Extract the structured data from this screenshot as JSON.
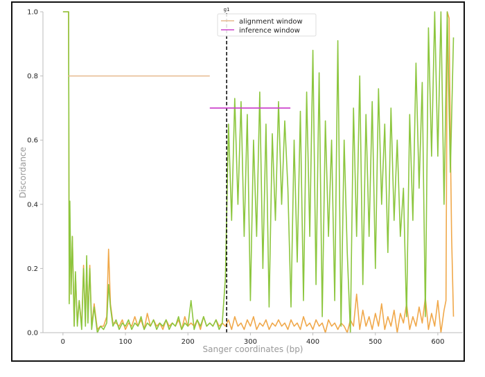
{
  "chart_data": {
    "type": "line",
    "title": "",
    "xlabel": "Sanger coordinates (bp)",
    "ylabel": "Discordance",
    "xlim": [
      -32,
      640
    ],
    "ylim": [
      0,
      1.0
    ],
    "xticks": [
      "0",
      "100",
      "200",
      "300",
      "400",
      "500",
      "600"
    ],
    "yticks": [
      "0.0",
      "0.2",
      "0.4",
      "0.6",
      "0.8",
      "1.0"
    ],
    "grid": false,
    "legend_position": "top-center",
    "legend": [
      "alignment window",
      "inference window"
    ],
    "colors": {
      "green": "#8cc63e",
      "orange": "#f0a84a",
      "alignment": "#e6b98e",
      "inference": "#cc44cc",
      "marker": "#000000"
    },
    "marker": {
      "label": "g1",
      "x": 262
    },
    "alignment_window": {
      "y": 0.8,
      "x": [
        8,
        235
      ]
    },
    "inference_window": {
      "y": 0.7,
      "x": [
        235,
        364
      ]
    },
    "series": [
      {
        "name": "green",
        "x": [
          0,
          9,
          10,
          11,
          13,
          15,
          18,
          20,
          23,
          26,
          30,
          33,
          36,
          38,
          40,
          43,
          46,
          50,
          55,
          60,
          65,
          70,
          73,
          76,
          80,
          85,
          90,
          95,
          100,
          105,
          110,
          115,
          120,
          125,
          130,
          135,
          140,
          145,
          150,
          155,
          160,
          165,
          170,
          175,
          180,
          185,
          190,
          195,
          200,
          205,
          210,
          215,
          220,
          225,
          230,
          235,
          240,
          245,
          250,
          255,
          260,
          265,
          270,
          275,
          280,
          285,
          290,
          295,
          300,
          305,
          310,
          315,
          320,
          325,
          330,
          335,
          340,
          345,
          350,
          355,
          360,
          365,
          370,
          375,
          380,
          385,
          390,
          395,
          400,
          405,
          410,
          415,
          420,
          425,
          430,
          435,
          440,
          445,
          450,
          455,
          460,
          465,
          470,
          475,
          480,
          485,
          490,
          495,
          500,
          505,
          510,
          515,
          520,
          525,
          530,
          535,
          540,
          545,
          550,
          555,
          560,
          565,
          570,
          575,
          580,
          585,
          590,
          595,
          600,
          605,
          610,
          615,
          620,
          625
        ],
        "y": [
          1.0,
          1.0,
          0.09,
          0.41,
          0.12,
          0.3,
          0.02,
          0.19,
          0.02,
          0.1,
          0.01,
          0.2,
          0.02,
          0.24,
          0.03,
          0.2,
          0.01,
          0.08,
          0.0,
          0.02,
          0.01,
          0.03,
          0.15,
          0.08,
          0.02,
          0.04,
          0.01,
          0.03,
          0.02,
          0.04,
          0.01,
          0.03,
          0.02,
          0.05,
          0.01,
          0.03,
          0.02,
          0.04,
          0.01,
          0.03,
          0.02,
          0.04,
          0.01,
          0.03,
          0.02,
          0.05,
          0.01,
          0.03,
          0.02,
          0.1,
          0.01,
          0.04,
          0.02,
          0.05,
          0.02,
          0.03,
          0.02,
          0.04,
          0.01,
          0.03,
          0.17,
          0.65,
          0.35,
          0.73,
          0.4,
          0.72,
          0.3,
          0.68,
          0.1,
          0.6,
          0.3,
          0.75,
          0.2,
          0.65,
          0.08,
          0.62,
          0.35,
          0.72,
          0.4,
          0.66,
          0.45,
          0.08,
          0.6,
          0.22,
          0.69,
          0.1,
          0.75,
          0.3,
          0.88,
          0.15,
          0.81,
          0.05,
          0.66,
          0.3,
          0.6,
          0.1,
          0.91,
          0.02,
          0.6,
          0.25,
          0.0,
          0.7,
          0.3,
          0.8,
          0.15,
          0.68,
          0.3,
          0.72,
          0.2,
          0.76,
          0.4,
          0.65,
          0.25,
          0.7,
          0.35,
          0.6,
          0.3,
          0.45,
          0.05,
          0.68,
          0.35,
          0.84,
          0.45,
          0.78,
          0.05,
          0.95,
          0.55,
          1.0,
          0.55,
          1.0,
          0.4,
          1.0,
          0.5,
          0.92
        ]
      },
      {
        "name": "orange",
        "x": [
          0,
          9,
          10,
          11,
          13,
          15,
          18,
          20,
          23,
          26,
          30,
          33,
          36,
          38,
          40,
          43,
          46,
          50,
          55,
          60,
          65,
          70,
          73,
          76,
          80,
          85,
          90,
          95,
          100,
          105,
          110,
          115,
          120,
          125,
          130,
          135,
          140,
          145,
          150,
          155,
          160,
          165,
          170,
          175,
          180,
          185,
          190,
          195,
          200,
          205,
          210,
          215,
          220,
          225,
          230,
          235,
          240,
          245,
          250,
          255,
          260,
          265,
          270,
          275,
          280,
          285,
          290,
          295,
          300,
          305,
          310,
          315,
          320,
          325,
          330,
          335,
          340,
          345,
          350,
          355,
          360,
          365,
          370,
          375,
          380,
          385,
          390,
          395,
          400,
          405,
          410,
          415,
          420,
          425,
          430,
          435,
          440,
          445,
          450,
          455,
          460,
          465,
          470,
          475,
          480,
          485,
          490,
          495,
          500,
          505,
          510,
          515,
          520,
          525,
          530,
          535,
          540,
          545,
          550,
          555,
          560,
          565,
          570,
          575,
          580,
          585,
          590,
          595,
          600,
          605,
          610,
          613,
          615,
          618,
          620,
          622,
          625
        ],
        "y": [
          1.0,
          1.0,
          0.1,
          0.35,
          0.12,
          0.3,
          0.02,
          0.18,
          0.03,
          0.1,
          0.02,
          0.21,
          0.03,
          0.22,
          0.05,
          0.21,
          0.02,
          0.09,
          0.01,
          0.02,
          0.02,
          0.05,
          0.26,
          0.09,
          0.03,
          0.03,
          0.02,
          0.04,
          0.01,
          0.03,
          0.02,
          0.05,
          0.02,
          0.04,
          0.01,
          0.06,
          0.02,
          0.04,
          0.02,
          0.03,
          0.01,
          0.04,
          0.02,
          0.03,
          0.02,
          0.04,
          0.01,
          0.05,
          0.02,
          0.03,
          0.02,
          0.04,
          0.01,
          0.05,
          0.02,
          0.03,
          0.02,
          0.04,
          0.02,
          0.03,
          0.02,
          0.04,
          0.01,
          0.05,
          0.02,
          0.03,
          0.01,
          0.04,
          0.02,
          0.05,
          0.01,
          0.03,
          0.02,
          0.04,
          0.01,
          0.03,
          0.02,
          0.04,
          0.02,
          0.03,
          0.01,
          0.04,
          0.02,
          0.03,
          0.01,
          0.05,
          0.02,
          0.03,
          0.01,
          0.04,
          0.02,
          0.03,
          0.0,
          0.04,
          0.02,
          0.03,
          0.01,
          0.03,
          0.02,
          0.0,
          0.04,
          0.02,
          0.12,
          0.01,
          0.07,
          0.02,
          0.05,
          0.01,
          0.06,
          0.02,
          0.09,
          0.01,
          0.05,
          0.02,
          0.07,
          0.0,
          0.06,
          0.03,
          0.09,
          0.01,
          0.05,
          0.02,
          0.08,
          0.03,
          0.11,
          0.01,
          0.06,
          0.02,
          0.1,
          0.0,
          0.07,
          0.1,
          1.0,
          0.98,
          0.6,
          0.3,
          0.05
        ]
      }
    ]
  }
}
